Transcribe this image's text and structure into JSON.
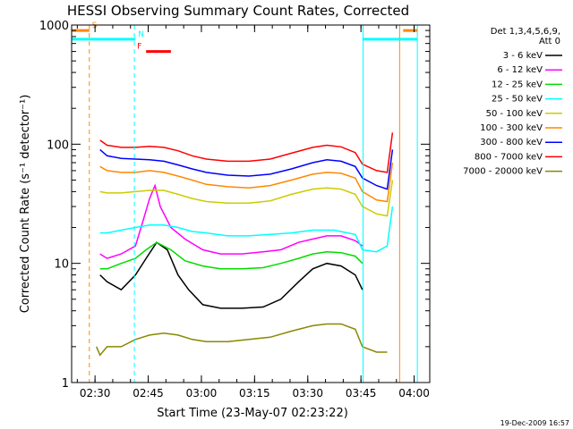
{
  "chart_data": {
    "type": "line",
    "title": "HESSI Observing Summary Count Rates, Corrected",
    "xlabel": "Start Time (23-May-07 02:23:22)",
    "ylabel": "Corrected Count Rate (s⁻¹ detector⁻¹)",
    "timestamp": "19-Dec-2009 16:57",
    "x_units": "minutes since 02:23:22",
    "xlim": [
      0,
      101
    ],
    "ylim": [
      1,
      1000
    ],
    "y_scale": "log",
    "x_ticks": [
      {
        "v": 6.6,
        "label": "02:30"
      },
      {
        "v": 21.6,
        "label": "02:45"
      },
      {
        "v": 36.6,
        "label": "03:00"
      },
      {
        "v": 51.6,
        "label": "03:15"
      },
      {
        "v": 66.6,
        "label": "03:30"
      },
      {
        "v": 81.6,
        "label": "03:45"
      },
      {
        "v": 96.6,
        "label": "04:00"
      }
    ],
    "y_ticks": [
      {
        "v": 1,
        "label": "1"
      },
      {
        "v": 10,
        "label": "10"
      },
      {
        "v": 100,
        "label": "100"
      },
      {
        "v": 1000,
        "label": "1000"
      }
    ],
    "legend_title": [
      "Det 1,3,4,5,6,9,",
      "Att 0"
    ],
    "series": [
      {
        "name": "3 - 6 keV",
        "color": "#000000",
        "values": [
          [
            8,
            8
          ],
          [
            10,
            7
          ],
          [
            14,
            6
          ],
          [
            18,
            8
          ],
          [
            21,
            11
          ],
          [
            24,
            15
          ],
          [
            27,
            13
          ],
          [
            30,
            8
          ],
          [
            33,
            6
          ],
          [
            37,
            4.5
          ],
          [
            42,
            4.2
          ],
          [
            48,
            4.2
          ],
          [
            54,
            4.3
          ],
          [
            59,
            5
          ],
          [
            64,
            7
          ],
          [
            68,
            9
          ],
          [
            72,
            10
          ],
          [
            76,
            9.5
          ],
          [
            80,
            8
          ],
          [
            82,
            6
          ]
        ]
      },
      {
        "name": "6 - 12 keV",
        "color": "#ff00ff",
        "values": [
          [
            8,
            12
          ],
          [
            10,
            11
          ],
          [
            14,
            12
          ],
          [
            18,
            14
          ],
          [
            20,
            22
          ],
          [
            22,
            35
          ],
          [
            23.5,
            45
          ],
          [
            25,
            30
          ],
          [
            28,
            20
          ],
          [
            32,
            16
          ],
          [
            37,
            13
          ],
          [
            42,
            12
          ],
          [
            48,
            12
          ],
          [
            54,
            12.5
          ],
          [
            59,
            13
          ],
          [
            64,
            15
          ],
          [
            68,
            16
          ],
          [
            72,
            17
          ],
          [
            76,
            17
          ],
          [
            80,
            15.5
          ],
          [
            82,
            14
          ]
        ]
      },
      {
        "name": "12 - 25 keV",
        "color": "#00dd00",
        "values": [
          [
            8,
            9
          ],
          [
            10,
            9
          ],
          [
            14,
            10
          ],
          [
            18,
            11
          ],
          [
            21,
            13
          ],
          [
            24,
            15
          ],
          [
            28,
            13
          ],
          [
            32,
            10.5
          ],
          [
            37,
            9.5
          ],
          [
            42,
            9
          ],
          [
            48,
            9
          ],
          [
            54,
            9.2
          ],
          [
            59,
            10
          ],
          [
            64,
            11
          ],
          [
            68,
            12
          ],
          [
            72,
            12.5
          ],
          [
            76,
            12.3
          ],
          [
            80,
            11.5
          ],
          [
            82,
            10
          ]
        ]
      },
      {
        "name": "25 - 50 keV",
        "color": "#00ffff",
        "values": [
          [
            8,
            18
          ],
          [
            10,
            18
          ],
          [
            14,
            19
          ],
          [
            18,
            20
          ],
          [
            22,
            21
          ],
          [
            26,
            21
          ],
          [
            30,
            20
          ],
          [
            34,
            18.5
          ],
          [
            38,
            18
          ],
          [
            44,
            17
          ],
          [
            50,
            17
          ],
          [
            56,
            17.5
          ],
          [
            62,
            18
          ],
          [
            68,
            19
          ],
          [
            74,
            19
          ],
          [
            80,
            17.5
          ],
          [
            82,
            13
          ],
          [
            86,
            12.5
          ],
          [
            89,
            14
          ],
          [
            90.5,
            30
          ]
        ]
      },
      {
        "name": "50 - 100 keV",
        "color": "#cccc00",
        "values": [
          [
            8,
            40
          ],
          [
            10,
            39
          ],
          [
            14,
            39
          ],
          [
            18,
            40
          ],
          [
            22,
            41
          ],
          [
            26,
            41
          ],
          [
            30,
            38
          ],
          [
            34,
            35
          ],
          [
            38,
            33
          ],
          [
            44,
            32
          ],
          [
            50,
            32
          ],
          [
            56,
            33.5
          ],
          [
            62,
            38
          ],
          [
            68,
            42
          ],
          [
            72,
            43
          ],
          [
            76,
            42
          ],
          [
            80,
            38
          ],
          [
            82,
            30
          ],
          [
            86,
            26
          ],
          [
            89,
            25
          ],
          [
            90.5,
            50
          ]
        ]
      },
      {
        "name": "100 - 300 keV",
        "color": "#ff8800",
        "values": [
          [
            8,
            65
          ],
          [
            10,
            60
          ],
          [
            14,
            58
          ],
          [
            18,
            58
          ],
          [
            22,
            60
          ],
          [
            26,
            58
          ],
          [
            30,
            54
          ],
          [
            34,
            50
          ],
          [
            38,
            46
          ],
          [
            44,
            44
          ],
          [
            50,
            43
          ],
          [
            56,
            45
          ],
          [
            62,
            50
          ],
          [
            68,
            56
          ],
          [
            72,
            58
          ],
          [
            76,
            57
          ],
          [
            80,
            52
          ],
          [
            82,
            40
          ],
          [
            86,
            34
          ],
          [
            89,
            33
          ],
          [
            90.5,
            70
          ]
        ]
      },
      {
        "name": "300 - 800 keV",
        "color": "#0000ff",
        "values": [
          [
            8,
            90
          ],
          [
            10,
            80
          ],
          [
            14,
            76
          ],
          [
            18,
            75
          ],
          [
            22,
            74
          ],
          [
            26,
            72
          ],
          [
            30,
            67
          ],
          [
            34,
            62
          ],
          [
            38,
            58
          ],
          [
            44,
            55
          ],
          [
            50,
            54
          ],
          [
            56,
            56
          ],
          [
            62,
            62
          ],
          [
            68,
            70
          ],
          [
            72,
            74
          ],
          [
            76,
            72
          ],
          [
            80,
            65
          ],
          [
            82,
            52
          ],
          [
            86,
            45
          ],
          [
            89,
            42
          ],
          [
            90.5,
            90
          ]
        ]
      },
      {
        "name": "800 - 7000 keV",
        "color": "#ff0000",
        "values": [
          [
            8,
            108
          ],
          [
            10,
            98
          ],
          [
            14,
            94
          ],
          [
            18,
            94
          ],
          [
            22,
            96
          ],
          [
            26,
            94
          ],
          [
            30,
            88
          ],
          [
            34,
            80
          ],
          [
            38,
            75
          ],
          [
            44,
            72
          ],
          [
            50,
            72
          ],
          [
            56,
            75
          ],
          [
            62,
            84
          ],
          [
            68,
            94
          ],
          [
            72,
            98
          ],
          [
            76,
            95
          ],
          [
            80,
            85
          ],
          [
            82,
            68
          ],
          [
            86,
            60
          ],
          [
            89,
            58
          ],
          [
            90.5,
            125
          ]
        ]
      },
      {
        "name": "7000 - 20000 keV",
        "color": "#888800",
        "values": [
          [
            7,
            2
          ],
          [
            8,
            1.7
          ],
          [
            10,
            2
          ],
          [
            14,
            2
          ],
          [
            18,
            2.3
          ],
          [
            22,
            2.5
          ],
          [
            26,
            2.6
          ],
          [
            30,
            2.5
          ],
          [
            34,
            2.3
          ],
          [
            38,
            2.2
          ],
          [
            44,
            2.2
          ],
          [
            50,
            2.3
          ],
          [
            56,
            2.4
          ],
          [
            62,
            2.7
          ],
          [
            68,
            3
          ],
          [
            72,
            3.1
          ],
          [
            76,
            3.1
          ],
          [
            80,
            2.8
          ],
          [
            82,
            2
          ],
          [
            86,
            1.8
          ],
          [
            89,
            1.8
          ]
        ]
      }
    ],
    "state_bars": [
      {
        "label": "S",
        "color": "#ff8800",
        "x": [
          0,
          5
        ],
        "y": 900
      },
      {
        "label": "",
        "color": "#ff8800",
        "x": [
          93.5,
          97.5
        ],
        "y": 900
      },
      {
        "label": "N",
        "color": "#00ffff",
        "x": [
          0,
          18
        ],
        "y": 760
      },
      {
        "label": "",
        "color": "#00ffff",
        "x": [
          82,
          97.5
        ],
        "y": 760
      },
      {
        "label": "F",
        "color": "#ff0000",
        "x": [
          21,
          28
        ],
        "y": 600
      }
    ],
    "vertical_lines": [
      {
        "x": 5,
        "color": "#ff8800",
        "style": "dashed"
      },
      {
        "x": 17.7,
        "color": "#00ffff",
        "style": "dashed"
      },
      {
        "x": 82.2,
        "color": "#00ffff",
        "style": "solid"
      },
      {
        "x": 92.5,
        "color": "#ff8800",
        "style": "solid"
      },
      {
        "x": 97.5,
        "color": "#00ffff",
        "style": "solid"
      }
    ]
  }
}
